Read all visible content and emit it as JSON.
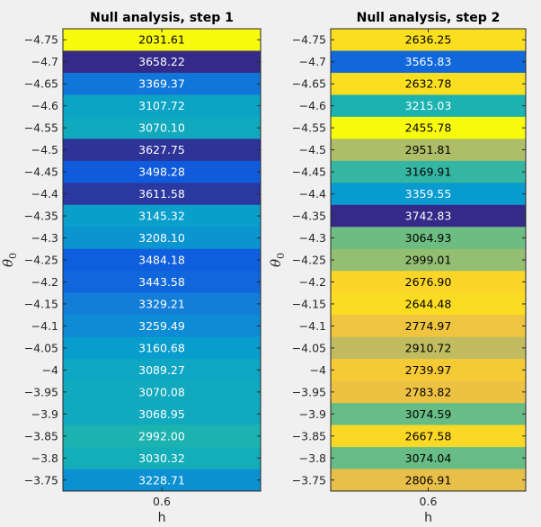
{
  "chart_data": [
    {
      "type": "heatmap",
      "title": "Null analysis, step 1",
      "xlabel": "h",
      "ylabel": "θ",
      "ylabel_subscript": "0",
      "x_categories": [
        "0.6"
      ],
      "y_categories": [
        "−4.75",
        "−4.7",
        "−4.65",
        "−4.6",
        "−4.55",
        "−4.5",
        "−4.45",
        "−4.4",
        "−4.35",
        "−4.3",
        "−4.25",
        "−4.2",
        "−4.15",
        "−4.1",
        "−4.05",
        "−4",
        "−3.95",
        "−3.9",
        "−3.85",
        "−3.8",
        "−3.75"
      ],
      "values": [
        "2031.61",
        "3658.22",
        "3369.37",
        "3107.72",
        "3070.10",
        "3627.75",
        "3498.28",
        "3611.58",
        "3145.32",
        "3208.10",
        "3484.18",
        "3443.58",
        "3329.21",
        "3259.49",
        "3160.68",
        "3089.27",
        "3070.08",
        "3068.95",
        "2992.00",
        "3030.32",
        "3228.71"
      ],
      "colormap": "parula"
    },
    {
      "type": "heatmap",
      "title": "Null analysis, step 2",
      "xlabel": "h",
      "ylabel": "θ",
      "ylabel_subscript": "0",
      "x_categories": [
        "0.6"
      ],
      "y_categories": [
        "−4.75",
        "−4.7",
        "−4.65",
        "−4.6",
        "−4.55",
        "−4.5",
        "−4.45",
        "−4.4",
        "−4.35",
        "−4.3",
        "−4.25",
        "−4.2",
        "−4.15",
        "−4.1",
        "−4.05",
        "−4",
        "−3.95",
        "−3.9",
        "−3.85",
        "−3.8",
        "−3.75"
      ],
      "values": [
        "2636.25",
        "3565.83",
        "2632.78",
        "3215.03",
        "2455.78",
        "2951.81",
        "3169.91",
        "3359.55",
        "3742.83",
        "3064.93",
        "2999.01",
        "2676.90",
        "2644.48",
        "2774.97",
        "2910.72",
        "2739.97",
        "2783.82",
        "3074.59",
        "2667.58",
        "3074.04",
        "2806.91"
      ],
      "colormap": "parula"
    }
  ]
}
